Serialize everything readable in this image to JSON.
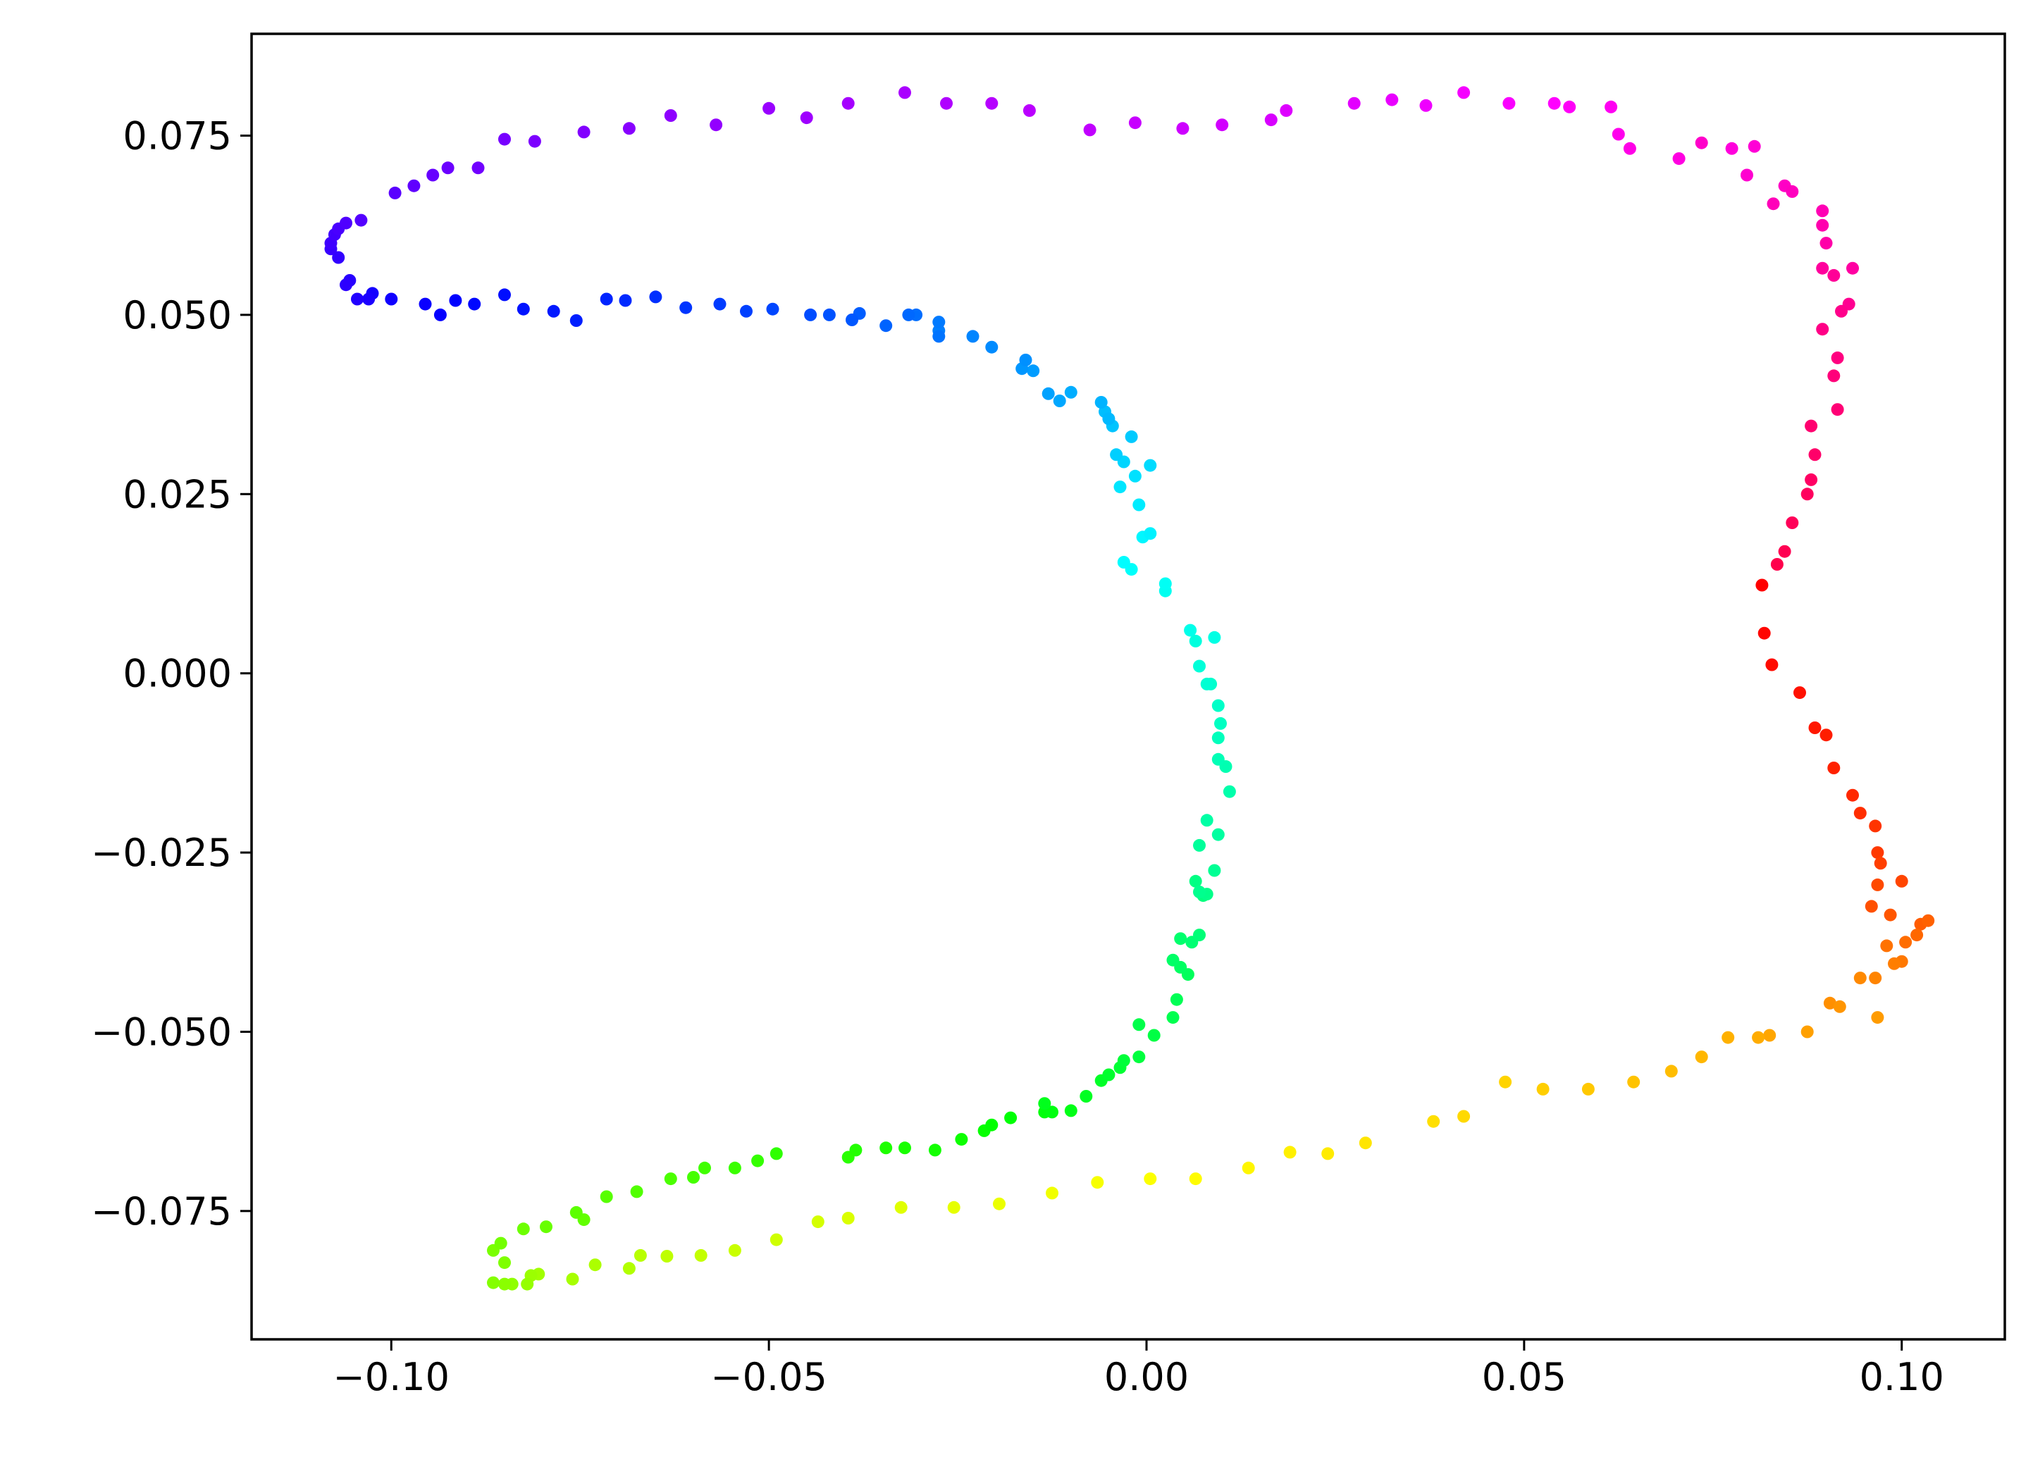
{
  "chart_data": {
    "type": "scatter",
    "title": "",
    "xlabel": "",
    "ylabel": "",
    "xlim": [
      -0.1185,
      0.11365
    ],
    "ylim": [
      -0.0929,
      0.0892
    ],
    "x_ticks": [
      {
        "value": -0.1,
        "label": "−0.10"
      },
      {
        "value": -0.05,
        "label": "−0.05"
      },
      {
        "value": 0.0,
        "label": "0.00"
      },
      {
        "value": 0.05,
        "label": "0.05"
      },
      {
        "value": 0.1,
        "label": "0.10"
      }
    ],
    "y_ticks": [
      {
        "value": -0.075,
        "label": "−0.075"
      },
      {
        "value": -0.05,
        "label": "−0.050"
      },
      {
        "value": -0.025,
        "label": "−0.025"
      },
      {
        "value": 0.0,
        "label": "0.000"
      },
      {
        "value": 0.025,
        "label": "0.025"
      },
      {
        "value": 0.05,
        "label": "0.050"
      },
      {
        "value": 0.075,
        "label": "0.075"
      }
    ],
    "colormap": "hsv",
    "grid": false,
    "legend": "none",
    "points": [
      [
        0.0815,
        0.0123
      ],
      [
        0.0818,
        0.0056
      ],
      [
        0.0828,
        0.0012
      ],
      [
        0.0865,
        -0.0027
      ],
      [
        0.0885,
        -0.0076
      ],
      [
        0.09,
        -0.0086
      ],
      [
        0.091,
        -0.0132
      ],
      [
        0.0935,
        -0.017
      ],
      [
        0.0945,
        -0.0195
      ],
      [
        0.0965,
        -0.0213
      ],
      [
        0.0968,
        -0.025
      ],
      [
        0.0972,
        -0.0265
      ],
      [
        0.1,
        -0.029
      ],
      [
        0.0968,
        -0.0295
      ],
      [
        0.096,
        -0.0325
      ],
      [
        0.0985,
        -0.0337
      ],
      [
        0.1025,
        -0.035
      ],
      [
        0.1035,
        -0.0345
      ],
      [
        0.102,
        -0.0365
      ],
      [
        0.1005,
        -0.0375
      ],
      [
        0.098,
        -0.038
      ],
      [
        0.1,
        -0.0402
      ],
      [
        0.099,
        -0.0405
      ],
      [
        0.0965,
        -0.0425
      ],
      [
        0.0945,
        -0.0425
      ],
      [
        0.0905,
        -0.046
      ],
      [
        0.0918,
        -0.0465
      ],
      [
        0.0968,
        -0.048
      ],
      [
        0.0875,
        -0.05
      ],
      [
        0.0825,
        -0.0505
      ],
      [
        0.081,
        -0.0508
      ],
      [
        0.077,
        -0.0508
      ],
      [
        0.0735,
        -0.0535
      ],
      [
        0.0695,
        -0.0555
      ],
      [
        0.0645,
        -0.057
      ],
      [
        0.0585,
        -0.058
      ],
      [
        0.0525,
        -0.058
      ],
      [
        0.0475,
        -0.057
      ],
      [
        0.042,
        -0.0618
      ],
      [
        0.038,
        -0.0625
      ],
      [
        0.029,
        -0.0655
      ],
      [
        0.024,
        -0.067
      ],
      [
        0.019,
        -0.0668
      ],
      [
        0.0135,
        -0.069
      ],
      [
        0.0065,
        -0.0705
      ],
      [
        0.0005,
        -0.0705
      ],
      [
        -0.0065,
        -0.071
      ],
      [
        -0.0125,
        -0.0725
      ],
      [
        -0.0195,
        -0.074
      ],
      [
        -0.0255,
        -0.0745
      ],
      [
        -0.0325,
        -0.0745
      ],
      [
        -0.0395,
        -0.076
      ],
      [
        -0.0435,
        -0.0765
      ],
      [
        -0.049,
        -0.079
      ],
      [
        -0.0545,
        -0.0805
      ],
      [
        -0.059,
        -0.0812
      ],
      [
        -0.0635,
        -0.0813
      ],
      [
        -0.067,
        -0.0812
      ],
      [
        -0.0685,
        -0.083
      ],
      [
        -0.073,
        -0.0825
      ],
      [
        -0.076,
        -0.0845
      ],
      [
        -0.0805,
        -0.0838
      ],
      [
        -0.0815,
        -0.084
      ],
      [
        -0.082,
        -0.0852
      ],
      [
        -0.084,
        -0.0852
      ],
      [
        -0.085,
        -0.0852
      ],
      [
        -0.0865,
        -0.085
      ],
      [
        -0.085,
        -0.0822
      ],
      [
        -0.0865,
        -0.0805
      ],
      [
        -0.0855,
        -0.0795
      ],
      [
        -0.0825,
        -0.0775
      ],
      [
        -0.0795,
        -0.0772
      ],
      [
        -0.0745,
        -0.0762
      ],
      [
        -0.0755,
        -0.0752
      ],
      [
        -0.0715,
        -0.073
      ],
      [
        -0.0675,
        -0.0723
      ],
      [
        -0.063,
        -0.0705
      ],
      [
        -0.06,
        -0.0703
      ],
      [
        -0.0585,
        -0.069
      ],
      [
        -0.0545,
        -0.069
      ],
      [
        -0.0515,
        -0.068
      ],
      [
        -0.049,
        -0.067
      ],
      [
        -0.0395,
        -0.0675
      ],
      [
        -0.0385,
        -0.0665
      ],
      [
        -0.0345,
        -0.0662
      ],
      [
        -0.032,
        -0.0662
      ],
      [
        -0.028,
        -0.0665
      ],
      [
        -0.0245,
        -0.065
      ],
      [
        -0.0215,
        -0.0638
      ],
      [
        -0.0205,
        -0.063
      ],
      [
        -0.018,
        -0.062
      ],
      [
        -0.0135,
        -0.0612
      ],
      [
        -0.0125,
        -0.0612
      ],
      [
        -0.01,
        -0.061
      ],
      [
        -0.0135,
        -0.06
      ],
      [
        -0.008,
        -0.059
      ],
      [
        -0.006,
        -0.0568
      ],
      [
        -0.005,
        -0.056
      ],
      [
        -0.0035,
        -0.055
      ],
      [
        -0.003,
        -0.054
      ],
      [
        -0.001,
        -0.0535
      ],
      [
        0.001,
        -0.0505
      ],
      [
        -0.001,
        -0.049
      ],
      [
        0.0035,
        -0.048
      ],
      [
        0.004,
        -0.0455
      ],
      [
        0.0055,
        -0.042
      ],
      [
        0.0045,
        -0.041
      ],
      [
        0.0035,
        -0.04
      ],
      [
        0.0045,
        -0.037
      ],
      [
        0.006,
        -0.0375
      ],
      [
        0.007,
        -0.0365
      ],
      [
        0.0075,
        -0.031
      ],
      [
        0.0065,
        -0.029
      ],
      [
        0.008,
        -0.0308
      ],
      [
        0.007,
        -0.0305
      ],
      [
        0.009,
        -0.0275
      ],
      [
        0.007,
        -0.024
      ],
      [
        0.0095,
        -0.0225
      ],
      [
        0.008,
        -0.0205
      ],
      [
        0.011,
        -0.0165
      ],
      [
        0.0105,
        -0.013
      ],
      [
        0.0095,
        -0.012
      ],
      [
        0.0095,
        -0.009
      ],
      [
        0.0098,
        -0.007
      ],
      [
        0.0095,
        -0.0045
      ],
      [
        0.0085,
        -0.0015
      ],
      [
        0.008,
        -0.0015
      ],
      [
        0.007,
        0.001
      ],
      [
        0.0065,
        0.0045
      ],
      [
        0.009,
        0.005
      ],
      [
        0.0058,
        0.006
      ],
      [
        0.0025,
        0.0115
      ],
      [
        0.0025,
        0.0125
      ],
      [
        -0.002,
        0.0145
      ],
      [
        -0.003,
        0.0155
      ],
      [
        -0.0005,
        0.019
      ],
      [
        0.0005,
        0.0195
      ],
      [
        -0.001,
        0.0235
      ],
      [
        -0.0035,
        0.026
      ],
      [
        -0.0015,
        0.0275
      ],
      [
        0.0005,
        0.029
      ],
      [
        -0.003,
        0.0295
      ],
      [
        -0.004,
        0.0305
      ],
      [
        -0.002,
        0.033
      ],
      [
        -0.0045,
        0.0345
      ],
      [
        -0.0055,
        0.0365
      ],
      [
        -0.005,
        0.0355
      ],
      [
        -0.006,
        0.0378
      ],
      [
        -0.01,
        0.0392
      ],
      [
        -0.0115,
        0.038
      ],
      [
        -0.013,
        0.039
      ],
      [
        -0.015,
        0.0422
      ],
      [
        -0.0165,
        0.0425
      ],
      [
        -0.016,
        0.0437
      ],
      [
        -0.0205,
        0.0455
      ],
      [
        -0.023,
        0.047
      ],
      [
        -0.0275,
        0.0478
      ],
      [
        -0.0275,
        0.049
      ],
      [
        -0.0275,
        0.047
      ],
      [
        -0.0305,
        0.05
      ],
      [
        -0.0315,
        0.05
      ],
      [
        -0.0345,
        0.0485
      ],
      [
        -0.038,
        0.0502
      ],
      [
        -0.039,
        0.0493
      ],
      [
        -0.042,
        0.05
      ],
      [
        -0.0445,
        0.05
      ],
      [
        -0.0495,
        0.0508
      ],
      [
        -0.053,
        0.0505
      ],
      [
        -0.0565,
        0.0515
      ],
      [
        -0.061,
        0.051
      ],
      [
        -0.065,
        0.0525
      ],
      [
        -0.069,
        0.052
      ],
      [
        -0.0715,
        0.0522
      ],
      [
        -0.0755,
        0.0492
      ],
      [
        -0.0785,
        0.0505
      ],
      [
        -0.0825,
        0.0508
      ],
      [
        -0.085,
        0.0528
      ],
      [
        -0.089,
        0.0515
      ],
      [
        -0.0915,
        0.052
      ],
      [
        -0.0935,
        0.05
      ],
      [
        -0.0955,
        0.0515
      ],
      [
        -0.1,
        0.0522
      ],
      [
        -0.1025,
        0.053
      ],
      [
        -0.103,
        0.0522
      ],
      [
        -0.1045,
        0.0522
      ],
      [
        -0.1055,
        0.0548
      ],
      [
        -0.106,
        0.0542
      ],
      [
        -0.107,
        0.058
      ],
      [
        -0.108,
        0.0592
      ],
      [
        -0.108,
        0.06
      ],
      [
        -0.1075,
        0.0612
      ],
      [
        -0.107,
        0.062
      ],
      [
        -0.106,
        0.0628
      ],
      [
        -0.104,
        0.0632
      ],
      [
        -0.0995,
        0.067
      ],
      [
        -0.097,
        0.068
      ],
      [
        -0.0945,
        0.0695
      ],
      [
        -0.0925,
        0.0705
      ],
      [
        -0.0885,
        0.0705
      ],
      [
        -0.085,
        0.0745
      ],
      [
        -0.081,
        0.0742
      ],
      [
        -0.0745,
        0.0755
      ],
      [
        -0.0685,
        0.076
      ],
      [
        -0.063,
        0.0778
      ],
      [
        -0.057,
        0.0765
      ],
      [
        -0.05,
        0.0788
      ],
      [
        -0.045,
        0.0775
      ],
      [
        -0.0395,
        0.0795
      ],
      [
        -0.032,
        0.081
      ],
      [
        -0.0265,
        0.0795
      ],
      [
        -0.0205,
        0.0795
      ],
      [
        -0.0155,
        0.0785
      ],
      [
        -0.0075,
        0.0758
      ],
      [
        -0.0015,
        0.0768
      ],
      [
        0.0048,
        0.076
      ],
      [
        0.01,
        0.0765
      ],
      [
        0.0165,
        0.0772
      ],
      [
        0.0185,
        0.0785
      ],
      [
        0.0275,
        0.0795
      ],
      [
        0.0325,
        0.08
      ],
      [
        0.037,
        0.0792
      ],
      [
        0.042,
        0.081
      ],
      [
        0.048,
        0.0795
      ],
      [
        0.054,
        0.0795
      ],
      [
        0.056,
        0.079
      ],
      [
        0.0615,
        0.079
      ],
      [
        0.0625,
        0.0752
      ],
      [
        0.064,
        0.0732
      ],
      [
        0.0705,
        0.0718
      ],
      [
        0.0775,
        0.0732
      ],
      [
        0.0805,
        0.0735
      ],
      [
        0.0795,
        0.0695
      ],
      [
        0.0735,
        0.074
      ],
      [
        0.0845,
        0.068
      ],
      [
        0.0855,
        0.0672
      ],
      [
        0.083,
        0.0655
      ],
      [
        0.0895,
        0.0645
      ],
      [
        0.0895,
        0.0625
      ],
      [
        0.09,
        0.06
      ],
      [
        0.0935,
        0.0565
      ],
      [
        0.0895,
        0.0565
      ],
      [
        0.091,
        0.0555
      ],
      [
        0.093,
        0.0515
      ],
      [
        0.092,
        0.0505
      ],
      [
        0.0895,
        0.048
      ],
      [
        0.0915,
        0.044
      ],
      [
        0.091,
        0.0415
      ],
      [
        0.0915,
        0.0368
      ],
      [
        0.088,
        0.0345
      ],
      [
        0.0885,
        0.0305
      ],
      [
        0.088,
        0.027
      ],
      [
        0.0875,
        0.025
      ],
      [
        0.0855,
        0.021
      ],
      [
        0.0845,
        0.017
      ],
      [
        0.0835,
        0.0152
      ]
    ]
  }
}
